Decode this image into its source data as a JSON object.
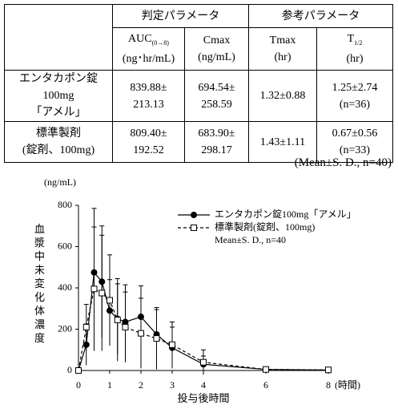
{
  "table": {
    "groups": [
      "判定パラメータ",
      "参考パラメータ"
    ],
    "columns": [
      {
        "name": "AUC",
        "sub": "(0→8)",
        "unit": "(ng･hr/mL)"
      },
      {
        "name": "Cmax",
        "unit": "(ng/mL)"
      },
      {
        "name": "Tmax",
        "unit": "(hr)"
      },
      {
        "name": "T",
        "sub": "1/2",
        "unit": "(hr)"
      }
    ],
    "rows": [
      {
        "label": [
          "エンタカポン錠100mg",
          "「アメル」"
        ],
        "cells": [
          [
            "839.88±",
            "213.13"
          ],
          [
            "694.54±",
            "258.59"
          ],
          [
            "1.32±0.88"
          ],
          [
            "1.25±2.74",
            "(n=36)"
          ]
        ]
      },
      {
        "label": [
          "標準製剤",
          "(錠剤、100mg)"
        ],
        "cells": [
          [
            "809.40±",
            "192.52"
          ],
          [
            "683.90±",
            "298.17"
          ],
          [
            "1.43±1.11"
          ],
          [
            "0.67±0.56",
            "(n=33)"
          ]
        ]
      }
    ]
  },
  "note": "(Mean±S. D., n=40)",
  "chart_data": {
    "type": "line",
    "y_unit": "(ng/mL)",
    "y_label": "血漿中未変化体濃度",
    "x_label": "投与後時間",
    "x_unit": "(時間)",
    "legend_note": "Mean±S. D., n=40",
    "x": [
      0,
      0.25,
      0.5,
      0.75,
      1,
      1.25,
      1.5,
      2,
      2.5,
      3,
      4,
      6,
      8
    ],
    "series": [
      {
        "name": "エンタカポン錠100mg「アメル」",
        "color": "#000000",
        "marker": "circle",
        "dash": false,
        "values": [
          0,
          125,
          475,
          430,
          290,
          250,
          235,
          260,
          175,
          110,
          30,
          5,
          2
        ],
        "sd": [
          0,
          100,
          310,
          270,
          150,
          170,
          180,
          150,
          120,
          100,
          40,
          10,
          5
        ]
      },
      {
        "name": "標準製剤(錠剤、100mg)",
        "color": "#000000",
        "marker": "square",
        "dash": true,
        "values": [
          0,
          210,
          395,
          375,
          340,
          245,
          210,
          180,
          155,
          125,
          40,
          5,
          3
        ],
        "sd": [
          0,
          110,
          300,
          280,
          220,
          200,
          170,
          170,
          150,
          110,
          60,
          10,
          5
        ]
      }
    ],
    "xlim": [
      0,
      8
    ],
    "xticks": [
      0,
      1,
      2,
      3,
      4,
      6,
      8
    ],
    "ylim": [
      0,
      800
    ],
    "yticks": [
      0,
      200,
      400,
      600,
      800
    ]
  }
}
